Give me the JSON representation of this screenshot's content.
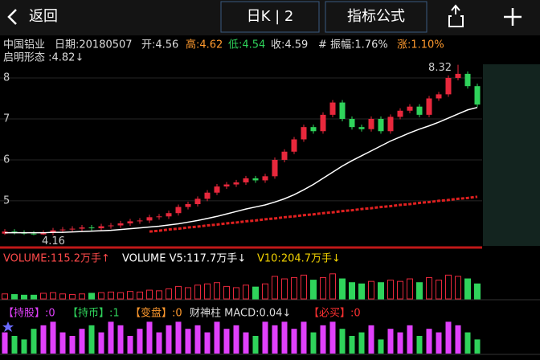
{
  "header": {
    "back": "返回",
    "period": "日K | 2",
    "formula": "指标公式"
  },
  "info": {
    "name": "中国铝业",
    "date": "日期:20180507",
    "open": "开:4.56",
    "high": "高:4.62",
    "low": "低:4.54",
    "close": "收:4.59",
    "amplitude": "# 振幅:1.76%",
    "change": "涨:1.10%",
    "pattern": "启明形态 :4.82↓"
  },
  "main": {
    "ylim": [
      3.9,
      8.4
    ],
    "yticks": [
      5,
      6,
      7,
      8
    ],
    "candles": {
      "open": [
        4.2,
        4.25,
        4.22,
        4.2,
        4.18,
        4.22,
        4.28,
        4.3,
        4.32,
        4.35,
        4.33,
        4.38,
        4.4,
        4.45,
        4.5,
        4.52,
        4.6,
        4.62,
        4.7,
        4.85,
        4.92,
        5.05,
        5.2,
        5.35,
        5.4,
        5.45,
        5.55,
        5.5,
        5.6,
        6.0,
        6.2,
        6.5,
        6.8,
        6.7,
        7.1,
        7.4,
        7.0,
        6.8,
        6.75,
        7.0,
        6.7,
        7.05,
        7.2,
        7.3,
        7.1,
        7.5,
        7.6,
        8.0,
        8.1,
        7.8
      ],
      "high": [
        4.31,
        4.31,
        4.28,
        4.26,
        4.28,
        4.34,
        4.36,
        4.38,
        4.41,
        4.41,
        4.44,
        4.46,
        4.51,
        4.56,
        4.58,
        4.66,
        4.68,
        4.76,
        4.91,
        4.98,
        5.11,
        5.26,
        5.41,
        5.46,
        5.51,
        5.61,
        5.61,
        5.66,
        6.06,
        6.26,
        6.56,
        6.86,
        6.86,
        7.16,
        7.46,
        7.46,
        7.06,
        6.86,
        7.06,
        7.06,
        7.11,
        7.26,
        7.36,
        7.36,
        7.56,
        7.66,
        8.06,
        8.32,
        8.16,
        7.86
      ],
      "low": [
        4.17,
        4.18,
        4.17,
        4.16,
        4.17,
        4.16,
        4.22,
        4.24,
        4.26,
        4.27,
        4.27,
        4.32,
        4.34,
        4.39,
        4.44,
        4.46,
        4.54,
        4.56,
        4.64,
        4.79,
        4.86,
        4.99,
        5.14,
        5.29,
        5.34,
        5.39,
        5.44,
        5.44,
        5.54,
        5.94,
        6.14,
        6.44,
        6.64,
        6.64,
        7.04,
        6.94,
        6.74,
        6.69,
        6.69,
        6.64,
        6.64,
        6.99,
        7.14,
        7.04,
        7.04,
        7.44,
        7.54,
        7.94,
        7.74,
        7.29
      ],
      "close": [
        4.25,
        4.22,
        4.2,
        4.18,
        4.22,
        4.28,
        4.3,
        4.32,
        4.35,
        4.33,
        4.38,
        4.4,
        4.45,
        4.5,
        4.52,
        4.6,
        4.62,
        4.7,
        4.85,
        4.92,
        5.05,
        5.2,
        5.35,
        5.4,
        5.45,
        5.55,
        5.5,
        5.6,
        6.0,
        6.2,
        6.5,
        6.8,
        6.7,
        7.1,
        7.4,
        7.0,
        6.8,
        6.75,
        7.0,
        6.7,
        7.05,
        7.2,
        7.3,
        7.1,
        7.5,
        7.6,
        8.0,
        8.1,
        7.8,
        7.35
      ]
    },
    "lines": [
      {
        "color": "#ffffff",
        "values": [
          4.22,
          4.22,
          4.22,
          4.22,
          4.22,
          4.23,
          4.23,
          4.24,
          4.25,
          4.26,
          4.27,
          4.28,
          4.3,
          4.32,
          4.34,
          4.36,
          4.38,
          4.41,
          4.44,
          4.48,
          4.52,
          4.57,
          4.62,
          4.68,
          4.74,
          4.8,
          4.85,
          4.9,
          4.97,
          5.05,
          5.15,
          5.27,
          5.4,
          5.55,
          5.7,
          5.85,
          5.98,
          6.1,
          6.22,
          6.34,
          6.46,
          6.56,
          6.66,
          6.75,
          6.83,
          6.92,
          7.02,
          7.12,
          7.22,
          7.28
        ]
      },
      {
        "color": "#e02020",
        "values": [
          null,
          null,
          null,
          null,
          null,
          null,
          null,
          null,
          null,
          null,
          null,
          null,
          null,
          null,
          null,
          4.25,
          4.27,
          4.3,
          4.32,
          4.35,
          4.37,
          4.4,
          4.42,
          4.45,
          4.47,
          4.5,
          4.52,
          4.55,
          4.57,
          4.6,
          4.62,
          4.65,
          4.67,
          4.7,
          4.72,
          4.75,
          4.77,
          4.8,
          4.82,
          4.85,
          4.87,
          4.9,
          4.92,
          4.95,
          4.97,
          5.0,
          5.02,
          5.05,
          5.07,
          5.1
        ]
      }
    ]
  },
  "volume": {
    "labels": [
      "VOLUME:115.2万手↑",
      "VOLUME V5:117.7万手↓",
      "V10:204.7万手↓"
    ],
    "ylim": [
      0,
      250
    ],
    "values": [
      40,
      35,
      30,
      30,
      45,
      50,
      40,
      35,
      40,
      45,
      50,
      55,
      50,
      60,
      55,
      70,
      65,
      80,
      100,
      90,
      110,
      120,
      130,
      100,
      90,
      110,
      95,
      120,
      180,
      160,
      170,
      190,
      150,
      170,
      200,
      160,
      130,
      120,
      140,
      130,
      150,
      140,
      160,
      130,
      170,
      150,
      190,
      180,
      160,
      120
    ]
  },
  "indicator": {
    "labels": [
      "【持股】:0",
      "【持币】:1",
      "【变盘】:0",
      "财神柱 MACD:0.04↓",
      "【必买】:0"
    ],
    "ylim": [
      0,
      1
    ],
    "values": [
      0.6,
      0.5,
      0.4,
      0.7,
      0.8,
      0.9,
      0.6,
      0.5,
      0.7,
      0.8,
      0.6,
      0.9,
      0.8,
      0.5,
      0.7,
      0.9,
      0.6,
      0.8,
      0.9,
      0.7,
      0.8,
      0.6,
      0.9,
      0.7,
      0.8,
      0.6,
      0.5,
      0.9,
      0.8,
      0.9,
      0.7,
      0.9,
      0.6,
      0.8,
      0.9,
      0.7,
      0.5,
      0.6,
      0.8,
      0.4,
      0.7,
      0.6,
      0.8,
      0.5,
      0.7,
      0.6,
      0.9,
      0.8,
      0.6,
      0.4
    ]
  }
}
